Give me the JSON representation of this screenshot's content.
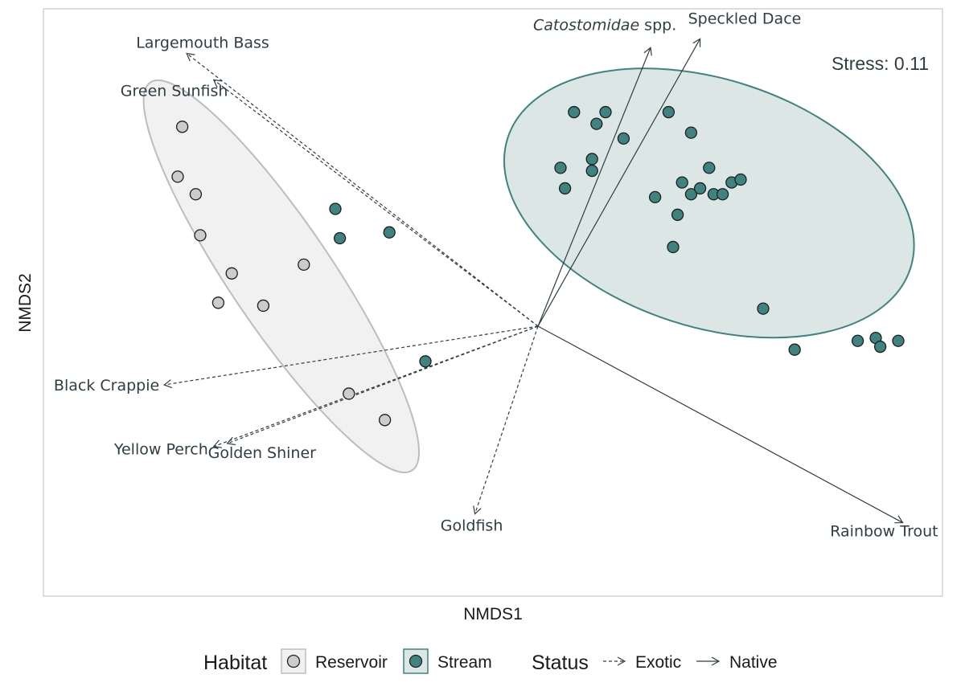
{
  "chart_data": {
    "type": "scatter",
    "title": "",
    "xlabel": "NMDS1",
    "ylabel": "NMDS2",
    "xlim": [
      -1.0,
      1.0
    ],
    "ylim": [
      -1.0,
      1.0
    ],
    "grid": false,
    "stress_label": "Stress: 0.11",
    "legend": {
      "position": "bottom",
      "habitat_title": "Habitat",
      "status_title": "Status",
      "items": [
        {
          "group": "habitat",
          "label": "Reservoir",
          "fill": "#cccccc",
          "stroke": "#b3b3b3"
        },
        {
          "group": "habitat",
          "label": "Stream",
          "fill": "#3f8380",
          "stroke": "#3f8380"
        },
        {
          "group": "status",
          "label": "Exotic",
          "style": "dashed"
        },
        {
          "group": "status",
          "label": "Native",
          "style": "solid"
        }
      ]
    },
    "series": [
      {
        "name": "Reservoir",
        "color": "#cccccc",
        "points": [
          [
            -0.79,
            0.68
          ],
          [
            -0.8,
            0.51
          ],
          [
            -0.76,
            0.45
          ],
          [
            -0.75,
            0.31
          ],
          [
            -0.68,
            0.18
          ],
          [
            -0.71,
            0.08
          ],
          [
            -0.61,
            0.07
          ],
          [
            -0.52,
            0.21
          ],
          [
            -0.42,
            -0.23
          ],
          [
            -0.34,
            -0.32
          ]
        ]
      },
      {
        "name": "Stream",
        "color": "#3f8380",
        "points": [
          [
            -0.45,
            0.4
          ],
          [
            -0.44,
            0.3
          ],
          [
            -0.33,
            0.32
          ],
          [
            -0.25,
            -0.12
          ],
          [
            0.08,
            0.73
          ],
          [
            0.05,
            0.54
          ],
          [
            0.06,
            0.47
          ],
          [
            0.13,
            0.69
          ],
          [
            0.15,
            0.73
          ],
          [
            0.12,
            0.57
          ],
          [
            0.12,
            0.53
          ],
          [
            0.19,
            0.64
          ],
          [
            0.29,
            0.73
          ],
          [
            0.34,
            0.66
          ],
          [
            0.32,
            0.49
          ],
          [
            0.34,
            0.45
          ],
          [
            0.36,
            0.47
          ],
          [
            0.39,
            0.45
          ],
          [
            0.41,
            0.45
          ],
          [
            0.38,
            0.54
          ],
          [
            0.43,
            0.49
          ],
          [
            0.45,
            0.5
          ],
          [
            0.26,
            0.44
          ],
          [
            0.31,
            0.38
          ],
          [
            0.3,
            0.27
          ],
          [
            0.5,
            0.06
          ],
          [
            0.57,
            -0.08
          ],
          [
            0.71,
            -0.05
          ],
          [
            0.75,
            -0.04
          ],
          [
            0.76,
            -0.07
          ],
          [
            0.8,
            -0.05
          ]
        ]
      }
    ],
    "ellipses": [
      {
        "habitat": "Reservoir",
        "center": [
          -0.57,
          0.17
        ],
        "rx": 0.52,
        "ry": 0.114,
        "rotation_deg": 56,
        "fill": "#f1f1f1",
        "stroke": "#bdbdbd"
      },
      {
        "habitat": "Stream",
        "center": [
          0.38,
          0.42
        ],
        "rx": 0.47,
        "ry": 0.275,
        "rotation_deg": 18,
        "fill": "#dbe6e5",
        "stroke": "#3f8380"
      }
    ],
    "vectors": [
      {
        "species": "Catostomidae",
        "suffix": " spp.",
        "status": "Native",
        "x": 0.25,
        "y": 0.95
      },
      {
        "species": "Speckled Dace",
        "status": "Native",
        "x": 0.36,
        "y": 0.98
      },
      {
        "species": "Rainbow Trout",
        "status": "Native",
        "x": 0.81,
        "y": -0.67
      },
      {
        "species": "Largemouth Bass",
        "status": "Exotic",
        "x": -0.78,
        "y": 0.93
      },
      {
        "species": "Green Sunfish",
        "status": "Exotic",
        "x": -0.72,
        "y": 0.84
      },
      {
        "species": "Black Crappie",
        "status": "Exotic",
        "x": -0.83,
        "y": -0.2
      },
      {
        "species": "Yellow Perch",
        "status": "Exotic",
        "x": -0.72,
        "y": -0.41
      },
      {
        "species": "Golden Shiner",
        "status": "Exotic",
        "x": -0.69,
        "y": -0.4
      },
      {
        "species": "Goldfish",
        "status": "Exotic",
        "x": -0.14,
        "y": -0.64
      }
    ]
  }
}
